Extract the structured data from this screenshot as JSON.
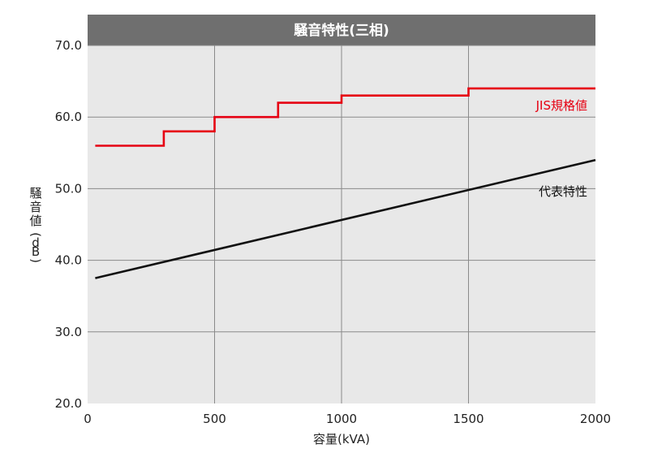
{
  "chart_data": {
    "type": "line",
    "title": "騒音特性(三相)",
    "xlabel": "容量(kVA)",
    "ylabel": "騒音値(dB)",
    "xlim": [
      0,
      2000
    ],
    "ylim": [
      20,
      70
    ],
    "x_ticks": [
      "0",
      "500",
      "1000",
      "1500",
      "2000"
    ],
    "y_ticks": [
      "20.0",
      "30.0",
      "40.0",
      "50.0",
      "60.0",
      "70.0"
    ],
    "grid": true,
    "series": [
      {
        "name": "JIS規格値",
        "color": "#e60012",
        "step": true,
        "points": [
          [
            30,
            56
          ],
          [
            300,
            56
          ],
          [
            300,
            58
          ],
          [
            500,
            58
          ],
          [
            500,
            60
          ],
          [
            750,
            60
          ],
          [
            750,
            62
          ],
          [
            1000,
            62
          ],
          [
            1000,
            63
          ],
          [
            1500,
            63
          ],
          [
            1500,
            64
          ],
          [
            2000,
            64
          ]
        ]
      },
      {
        "name": "代表特性",
        "color": "#111111",
        "step": false,
        "points": [
          [
            30,
            37.5
          ],
          [
            2000,
            54
          ]
        ]
      }
    ]
  }
}
